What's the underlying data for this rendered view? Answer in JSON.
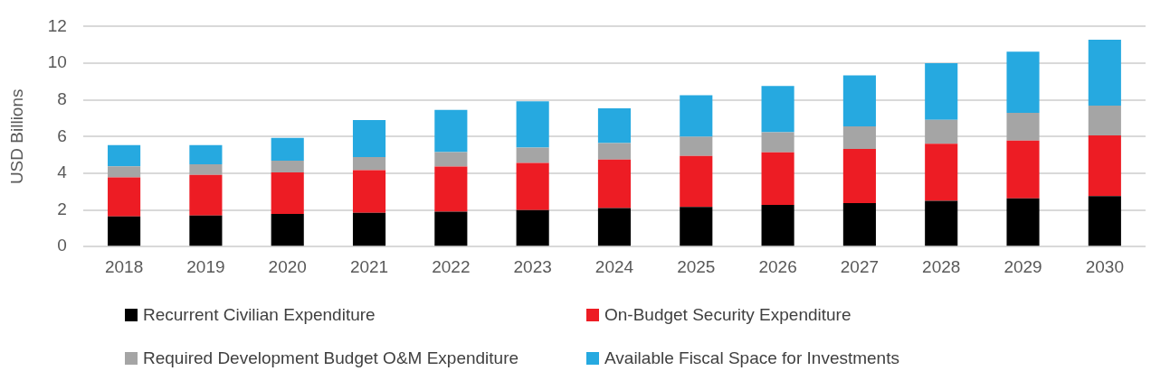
{
  "chart_data": {
    "type": "bar",
    "stacked": true,
    "ylabel": "USD Billions",
    "categories": [
      "2018",
      "2019",
      "2020",
      "2021",
      "2022",
      "2023",
      "2024",
      "2025",
      "2026",
      "2027",
      "2028",
      "2029",
      "2030"
    ],
    "series": [
      {
        "name": "Recurrent Civilian Expenditure",
        "color": "#000000",
        "values": [
          1.65,
          1.7,
          1.78,
          1.84,
          1.91,
          1.99,
          2.1,
          2.16,
          2.28,
          2.37,
          2.49,
          2.63,
          2.76
        ]
      },
      {
        "name": "On-Budget Security Expenditure",
        "color": "#ed1c24",
        "values": [
          2.13,
          2.21,
          2.26,
          2.33,
          2.45,
          2.57,
          2.65,
          2.78,
          2.86,
          2.96,
          3.12,
          3.15,
          3.3
        ]
      },
      {
        "name": "Required Development Budget O&M Expenditure",
        "color": "#a5a5a5",
        "values": [
          0.6,
          0.58,
          0.64,
          0.71,
          0.79,
          0.84,
          0.9,
          1.05,
          1.1,
          1.23,
          1.3,
          1.52,
          1.63
        ]
      },
      {
        "name": "Available Fiscal Space for Investments",
        "color": "#26a9e0",
        "values": [
          1.16,
          1.05,
          1.25,
          2.02,
          2.31,
          2.52,
          1.89,
          2.27,
          2.52,
          2.78,
          3.09,
          3.33,
          3.59
        ]
      }
    ],
    "ylim": [
      0,
      12
    ],
    "yticks": [
      0,
      2,
      4,
      6,
      8,
      10,
      12
    ],
    "grid": "y",
    "legend": "bottom"
  }
}
